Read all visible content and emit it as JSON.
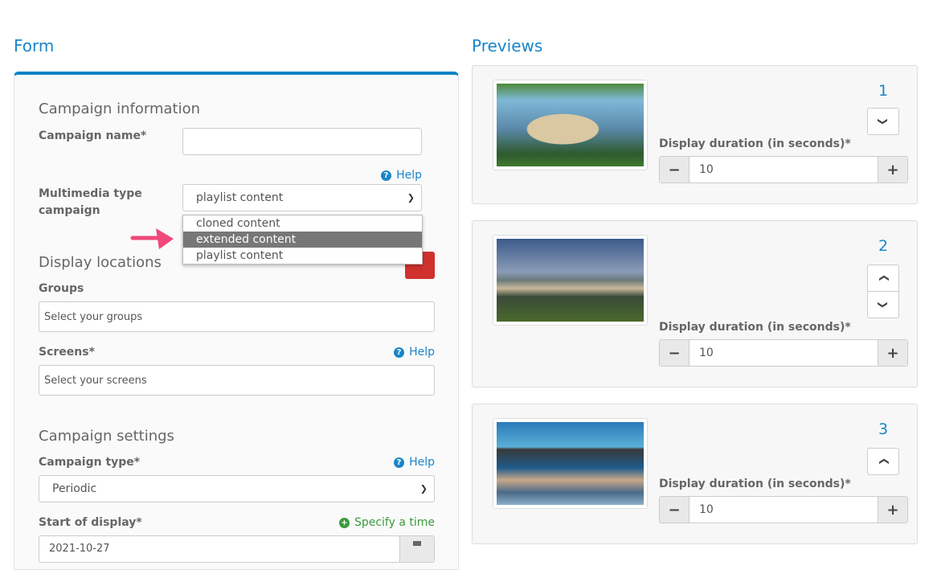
{
  "form": {
    "title": "Form",
    "campaign_information": {
      "heading": "Campaign information",
      "name_label": "Campaign name*",
      "name_value": "",
      "help": "Help",
      "type_label": "Multimedia type campaign",
      "type_value": "playlist content",
      "type_options": [
        "cloned content",
        "extended content",
        "playlist content"
      ],
      "highlighted_option": "extended content"
    },
    "display_locations": {
      "heading": "Display locations",
      "groups_label": "Groups",
      "groups_placeholder": "Select your groups",
      "screens_label": "Screens*",
      "screens_help": "Help",
      "screens_placeholder": "Select your screens"
    },
    "campaign_settings": {
      "heading": "Campaign settings",
      "type_label": "Campaign type*",
      "type_help": "Help",
      "type_value": "Periodic",
      "start_label": "Start of display*",
      "specify_time": "Specify a time",
      "start_value": "2021-10-27"
    }
  },
  "previews": {
    "title": "Previews",
    "duration_label": "Display duration (in seconds)*",
    "items": [
      {
        "order": "1",
        "duration": "10",
        "image": "floating-egg-house-on-lake"
      },
      {
        "order": "2",
        "duration": "10",
        "image": "glass-house-at-dusk"
      },
      {
        "order": "3",
        "duration": "10",
        "image": "modern-house-over-water"
      }
    ]
  },
  "colors": {
    "accent": "#1a86c8",
    "danger": "#d0312d",
    "success": "#3c9a3c",
    "arrow": "#f0487a"
  }
}
